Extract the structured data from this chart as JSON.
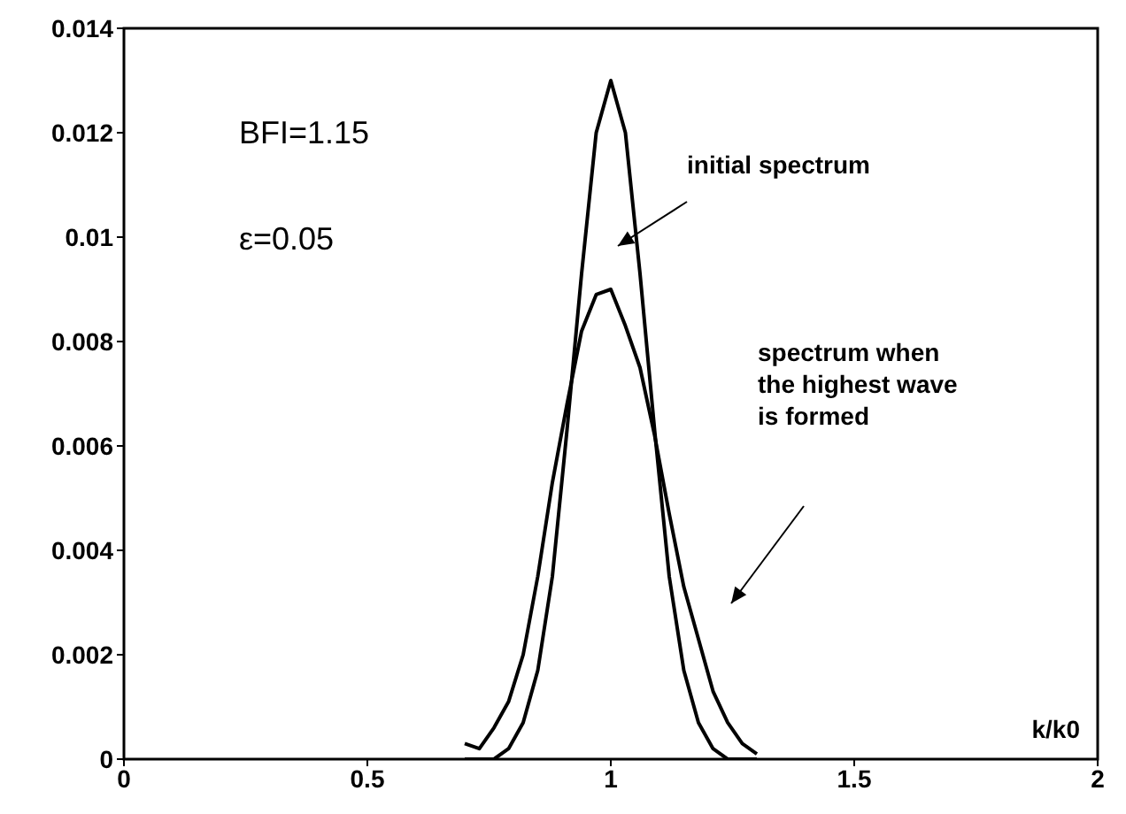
{
  "chart_data": {
    "type": "line",
    "xlabel": "k/k0",
    "x": [
      0.7,
      0.73,
      0.76,
      0.79,
      0.82,
      0.85,
      0.88,
      0.91,
      0.94,
      0.97,
      1.0,
      1.03,
      1.06,
      1.09,
      1.12,
      1.15,
      1.18,
      1.21,
      1.24,
      1.27,
      1.3
    ],
    "series": [
      {
        "color": "#000000",
        "values": [
          0,
          0,
          0,
          0.0002,
          0.0007,
          0.0017,
          0.0035,
          0.0063,
          0.0093,
          0.012,
          0.013,
          0.012,
          0.0093,
          0.0063,
          0.0035,
          0.0017,
          0.0007,
          0.0002,
          0,
          0,
          0
        ]
      },
      {
        "color": "#000000",
        "values": [
          0.0003,
          0.0002,
          0.0006,
          0.0011,
          0.002,
          0.0035,
          0.0053,
          0.0068,
          0.0082,
          0.0089,
          0.009,
          0.0083,
          0.0075,
          0.0062,
          0.0047,
          0.0033,
          0.0023,
          0.0013,
          0.0007,
          0.0003,
          0.0001
        ]
      }
    ],
    "xlim": [
      0,
      2
    ],
    "xticks": [
      0,
      0.5,
      1,
      1.5,
      2
    ],
    "ylim": [
      0,
      0.014
    ],
    "yticks": [
      0,
      0.002,
      0.004,
      0.006,
      0.008,
      0.01,
      0.012,
      0.014
    ],
    "grid": false,
    "legend": false,
    "marker": "none",
    "line_style": "solid",
    "annotations": [
      "BFI=1.15",
      "ε=0.05",
      "initial spectrum",
      "spectrum when\nthe highest wave\nis formed"
    ]
  }
}
